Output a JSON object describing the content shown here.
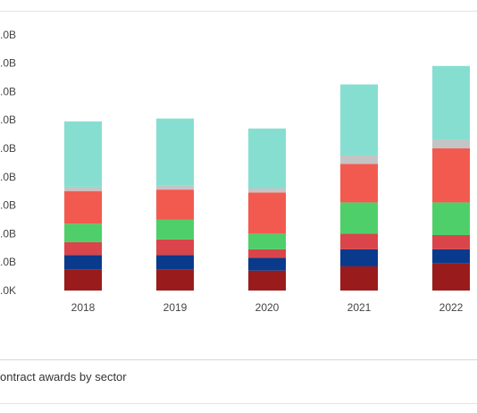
{
  "caption": "ontract awards by sector",
  "chart_data": {
    "type": "bar",
    "stacked": true,
    "categories": [
      "2018",
      "2019",
      "2020",
      "2021",
      "2022"
    ],
    "y_tick_labels": [
      ".0K",
      ".0B",
      ".0B",
      ".0B",
      ".0B",
      ".0B",
      ".0B",
      ".0B",
      ".0B",
      ".0B"
    ],
    "ylim": [
      0,
      9
    ],
    "grid": false,
    "series": [
      {
        "color": "#9a1b1b",
        "values": [
          0.75,
          0.75,
          0.7,
          0.85,
          0.95
        ]
      },
      {
        "color": "#0a3a8c",
        "values": [
          0.5,
          0.5,
          0.45,
          0.6,
          0.5
        ]
      },
      {
        "color": "#d9454a",
        "values": [
          0.45,
          0.55,
          0.3,
          0.55,
          0.5
        ]
      },
      {
        "color": "#4fcf6a",
        "values": [
          0.65,
          0.7,
          0.55,
          1.1,
          1.15
        ]
      },
      {
        "color": "#f25a4f",
        "values": [
          1.15,
          1.05,
          1.45,
          1.35,
          1.9
        ]
      },
      {
        "color": "#c4c4c4",
        "values": [
          0.15,
          0.15,
          0.15,
          0.3,
          0.3
        ]
      },
      {
        "color": "#86ded0",
        "values": [
          2.3,
          2.35,
          2.1,
          2.5,
          2.6
        ]
      }
    ]
  }
}
